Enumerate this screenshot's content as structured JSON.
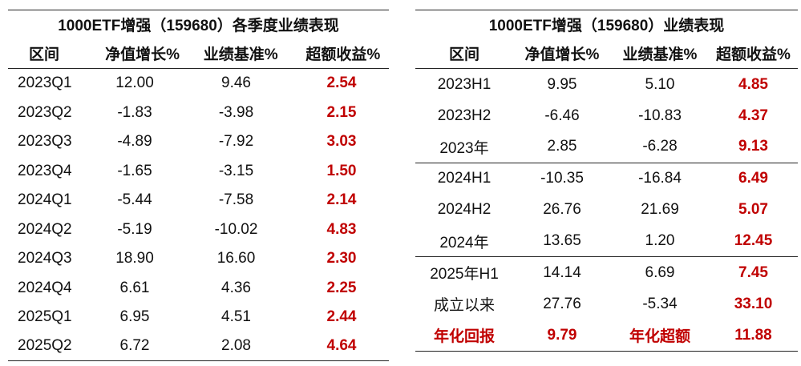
{
  "quarterly": {
    "title": "1000ETF增强（159680）各季度业绩表现",
    "headers": [
      "区间",
      "净值增长%",
      "业绩基准%",
      "超额收益%"
    ],
    "rows": [
      [
        "2023Q1",
        "12.00",
        "9.46",
        "2.54"
      ],
      [
        "2023Q2",
        "-1.83",
        "-3.98",
        "2.15"
      ],
      [
        "2023Q3",
        "-4.89",
        "-7.92",
        "3.03"
      ],
      [
        "2023Q4",
        "-1.65",
        "-3.15",
        "1.50"
      ],
      [
        "2024Q1",
        "-5.44",
        "-7.58",
        "2.14"
      ],
      [
        "2024Q2",
        "-5.19",
        "-10.02",
        "4.83"
      ],
      [
        "2024Q3",
        "18.90",
        "16.60",
        "2.30"
      ],
      [
        "2024Q4",
        "6.61",
        "4.36",
        "2.25"
      ],
      [
        "2025Q1",
        "6.95",
        "4.51",
        "2.44"
      ],
      [
        "2025Q2",
        "6.72",
        "2.08",
        "4.64"
      ]
    ]
  },
  "performance": {
    "title": "1000ETF增强（159680）业绩表现",
    "headers": [
      "区间",
      "净值增长%",
      "业绩基准%",
      "超额收益%"
    ],
    "rows": [
      [
        "2023H1",
        "9.95",
        "5.10",
        "4.85"
      ],
      [
        "2023H2",
        "-6.46",
        "-10.83",
        "4.37"
      ],
      [
        "2023年",
        "2.85",
        "-6.28",
        "9.13"
      ],
      [
        "2024H1",
        "-10.35",
        "-16.84",
        "6.49"
      ],
      [
        "2024H2",
        "26.76",
        "21.69",
        "5.07"
      ],
      [
        "2024年",
        "13.65",
        "1.20",
        "12.45"
      ],
      [
        "2025年H1",
        "14.14",
        "6.69",
        "7.45"
      ],
      [
        "成立以来",
        "27.76",
        "-5.34",
        "33.10"
      ]
    ],
    "summary": [
      "年化回报",
      "9.79",
      "年化超额",
      "11.88"
    ]
  },
  "colors": {
    "highlight": "#c00000",
    "rule": "#222222"
  }
}
